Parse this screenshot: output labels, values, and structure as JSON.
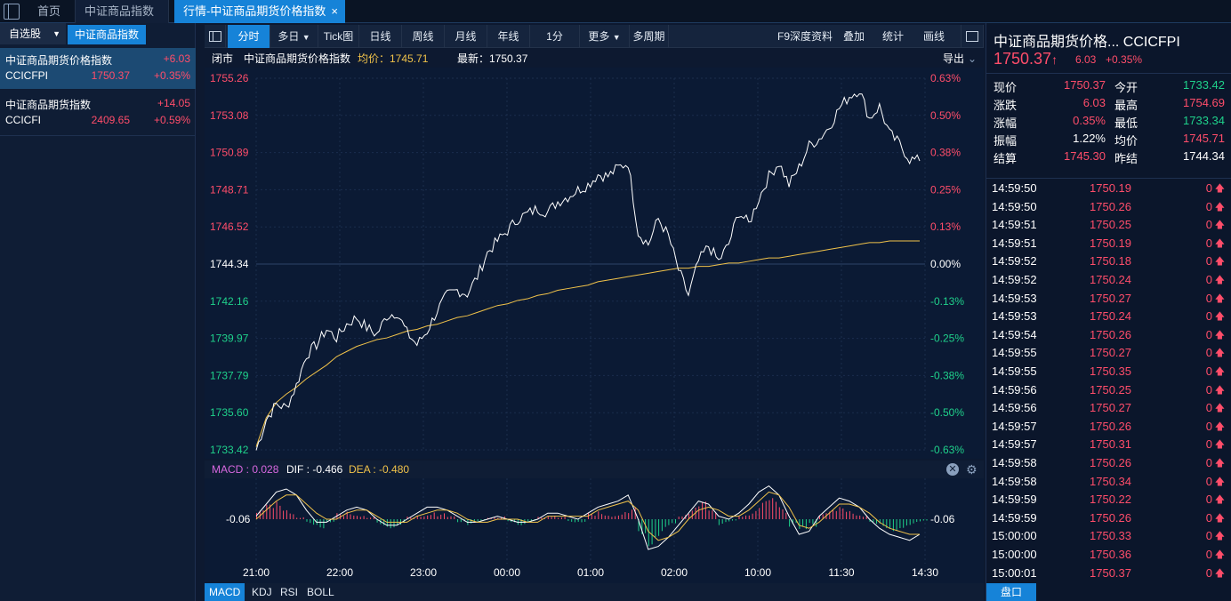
{
  "tabs": {
    "home": "首页",
    "index": "中证商品指数",
    "active": "行情-中证商品期货价格指数",
    "close": "×"
  },
  "left": {
    "tab_watchlist": "自选股",
    "tab_index": "中证商品指数",
    "items": [
      {
        "name": "中证商品期货价格指数",
        "change": "+6.03",
        "code": "CCICFPI",
        "price": "1750.37",
        "pct": "+0.35%"
      },
      {
        "name": "中证商品期货指数",
        "change": "+14.05",
        "code": "CCICFI",
        "price": "2409.65",
        "pct": "+0.59%"
      }
    ]
  },
  "toolbar": {
    "buttons": [
      "分时",
      "多日",
      "Tick图",
      "日线",
      "周线",
      "月线",
      "年线",
      "1分",
      "更多",
      "多周期"
    ],
    "right": [
      "F9深度资料",
      "叠加",
      "统计",
      "画线"
    ]
  },
  "chart_header": {
    "status": "闭市",
    "name": "中证商品期货价格指数",
    "avg_label": "均价：1745.71",
    "last_label": "最新：1750.37",
    "export": "导出"
  },
  "macd": {
    "label": "MACD : 0.028",
    "dif": "DIF : -0.466",
    "dea": "DEA : -0.480",
    "left_val": "-0.06",
    "right_val": "-0.06"
  },
  "bottom_tabs": [
    "MACD",
    "KDJ",
    "RSI",
    "BOLL"
  ],
  "quote": {
    "title": "中证商品期货价格...  CCICFPI",
    "price": "1750.37",
    "arrow": "↑",
    "change": "6.03",
    "pct": "+0.35%",
    "rows": [
      [
        "现价",
        "1750.37",
        "今开",
        "1733.42"
      ],
      [
        "涨跌",
        "6.03",
        "最高",
        "1754.69"
      ],
      [
        "涨幅",
        "0.35%",
        "最低",
        "1733.34"
      ],
      [
        "振幅",
        "1.22%",
        "均价",
        "1745.71"
      ],
      [
        "结算",
        "1745.30",
        "昨结",
        "1744.34"
      ]
    ],
    "pankou": "盘口"
  },
  "ticks": [
    [
      "14:59:50",
      "1750.19",
      "0"
    ],
    [
      "14:59:50",
      "1750.26",
      "0"
    ],
    [
      "14:59:51",
      "1750.25",
      "0"
    ],
    [
      "14:59:51",
      "1750.19",
      "0"
    ],
    [
      "14:59:52",
      "1750.18",
      "0"
    ],
    [
      "14:59:52",
      "1750.24",
      "0"
    ],
    [
      "14:59:53",
      "1750.27",
      "0"
    ],
    [
      "14:59:53",
      "1750.24",
      "0"
    ],
    [
      "14:59:54",
      "1750.26",
      "0"
    ],
    [
      "14:59:55",
      "1750.27",
      "0"
    ],
    [
      "14:59:55",
      "1750.35",
      "0"
    ],
    [
      "14:59:56",
      "1750.25",
      "0"
    ],
    [
      "14:59:56",
      "1750.27",
      "0"
    ],
    [
      "14:59:57",
      "1750.26",
      "0"
    ],
    [
      "14:59:57",
      "1750.31",
      "0"
    ],
    [
      "14:59:58",
      "1750.26",
      "0"
    ],
    [
      "14:59:58",
      "1750.34",
      "0"
    ],
    [
      "14:59:59",
      "1750.22",
      "0"
    ],
    [
      "14:59:59",
      "1750.26",
      "0"
    ],
    [
      "15:00:00",
      "1750.33",
      "0"
    ],
    [
      "15:00:00",
      "1750.36",
      "0"
    ],
    [
      "15:00:01",
      "1750.37",
      "0"
    ]
  ],
  "colors": {
    "up": "#ff4d6a",
    "down": "#1fd18b",
    "accent": "#1683d8",
    "price_line": "#ffffff",
    "avg_line": "#f0c24a"
  },
  "chart_data": {
    "type": "line",
    "y_ticks": [
      "1755.26",
      "1753.08",
      "1750.89",
      "1748.71",
      "1746.52",
      "1744.34",
      "1742.16",
      "1739.97",
      "1737.79",
      "1735.60",
      "1733.42"
    ],
    "pct_ticks": [
      "0.63%",
      "0.50%",
      "0.38%",
      "0.25%",
      "0.13%",
      "0.00%",
      "-0.13%",
      "-0.25%",
      "-0.38%",
      "-0.50%",
      "-0.63%"
    ],
    "x_ticks": [
      "21:00",
      "22:00",
      "23:00",
      "00:00",
      "01:00",
      "02:00",
      "10:00",
      "11:30",
      "14:30"
    ],
    "ylim": [
      1733.42,
      1755.26
    ],
    "price": [
      1733.4,
      1735.2,
      1736.1,
      1735.9,
      1737.2,
      1739.0,
      1739.6,
      1740.5,
      1740.0,
      1740.8,
      1741.2,
      1740.6,
      1740.2,
      1741.3,
      1741.5,
      1740.3,
      1739.6,
      1740.4,
      1741.6,
      1742.5,
      1742.8,
      1742.6,
      1743.6,
      1745.0,
      1745.7,
      1746.3,
      1747.0,
      1747.3,
      1747.6,
      1747.4,
      1748.0,
      1748.3,
      1748.7,
      1749.0,
      1749.6,
      1749.5,
      1750.0,
      1750.3,
      1746.2,
      1745.5,
      1747.0,
      1746.0,
      1744.0,
      1742.5,
      1744.5,
      1745.4,
      1744.5,
      1745.5,
      1747.4,
      1746.7,
      1748.2,
      1749.5,
      1750.3,
      1749.0,
      1750.0,
      1751.3,
      1751.7,
      1752.4,
      1753.5,
      1754.2,
      1754.6,
      1752.9,
      1753.6,
      1752.0,
      1751.4,
      1750.5,
      1750.4
    ],
    "avg": [
      1733.6,
      1735.3,
      1736.2,
      1736.7,
      1737.1,
      1737.6,
      1738.0,
      1738.4,
      1738.9,
      1739.2,
      1739.5,
      1739.7,
      1739.9,
      1740.0,
      1740.2,
      1740.4,
      1740.5,
      1740.7,
      1740.8,
      1741.0,
      1741.2,
      1741.3,
      1741.5,
      1741.7,
      1741.9,
      1742.0,
      1742.2,
      1742.3,
      1742.5,
      1742.6,
      1742.8,
      1742.9,
      1743.0,
      1743.1,
      1743.3,
      1743.4,
      1743.5,
      1743.6,
      1743.7,
      1743.8,
      1743.9,
      1744.0,
      1744.1,
      1744.1,
      1744.2,
      1744.2,
      1744.3,
      1744.4,
      1744.4,
      1744.5,
      1744.6,
      1744.7,
      1744.7,
      1744.8,
      1744.9,
      1745.0,
      1745.1,
      1745.2,
      1745.3,
      1745.4,
      1745.5,
      1745.6,
      1745.6,
      1745.7,
      1745.7,
      1745.7,
      1745.7
    ],
    "macd_hist": [
      0.3,
      0.5,
      0.6,
      0.4,
      0.1,
      -0.2,
      -0.3,
      -0.1,
      0.2,
      0.3,
      0.2,
      0.1,
      -0.2,
      -0.3,
      -0.2,
      0.1,
      0.2,
      0.3,
      0.2,
      0.1,
      -0.1,
      -0.2,
      -0.1,
      0.1,
      0.1,
      -0.1,
      -0.2,
      -0.1,
      0.1,
      0.2,
      0.1,
      -0.1,
      -0.1,
      0.2,
      0.3,
      0.2,
      0.3,
      0.4,
      -0.5,
      -0.9,
      -0.6,
      -0.3,
      0.2,
      0.4,
      0.6,
      0.3,
      -0.2,
      -0.1,
      0.2,
      0.3,
      0.6,
      0.7,
      0.4,
      -0.3,
      -0.6,
      -0.3,
      0.2,
      0.3,
      0.4,
      0.3,
      0.2,
      -0.2,
      -0.3,
      -0.4,
      -0.3,
      -0.2,
      -0.1
    ],
    "dif": [
      0.1,
      0.5,
      0.9,
      1.0,
      0.8,
      0.3,
      -0.1,
      -0.1,
      0.1,
      0.3,
      0.4,
      0.3,
      0.0,
      -0.2,
      -0.2,
      0.0,
      0.2,
      0.4,
      0.4,
      0.3,
      0.1,
      -0.1,
      -0.1,
      0.0,
      0.1,
      0.0,
      -0.1,
      -0.1,
      0.0,
      0.2,
      0.2,
      0.1,
      0.0,
      0.2,
      0.4,
      0.5,
      0.6,
      0.8,
      0.0,
      -1.0,
      -0.9,
      -0.6,
      -0.2,
      0.2,
      0.6,
      0.5,
      0.1,
      0.0,
      0.2,
      0.5,
      0.9,
      1.1,
      0.8,
      0.1,
      -0.5,
      -0.4,
      0.1,
      0.4,
      0.7,
      0.6,
      0.4,
      0.0,
      -0.3,
      -0.5,
      -0.6,
      -0.7,
      -0.5
    ],
    "dea": [
      0.0,
      0.3,
      0.6,
      0.8,
      0.8,
      0.5,
      0.2,
      0.0,
      0.0,
      0.2,
      0.3,
      0.3,
      0.1,
      -0.1,
      -0.1,
      -0.1,
      0.1,
      0.2,
      0.3,
      0.3,
      0.2,
      0.0,
      -0.1,
      -0.1,
      0.0,
      0.0,
      0.0,
      -0.1,
      -0.1,
      0.1,
      0.1,
      0.1,
      0.1,
      0.1,
      0.3,
      0.4,
      0.5,
      0.6,
      0.3,
      -0.4,
      -0.7,
      -0.6,
      -0.4,
      0.0,
      0.3,
      0.4,
      0.3,
      0.1,
      0.1,
      0.3,
      0.6,
      0.9,
      0.8,
      0.4,
      -0.2,
      -0.3,
      -0.1,
      0.2,
      0.5,
      0.5,
      0.4,
      0.2,
      -0.1,
      -0.3,
      -0.4,
      -0.5,
      -0.5
    ]
  }
}
